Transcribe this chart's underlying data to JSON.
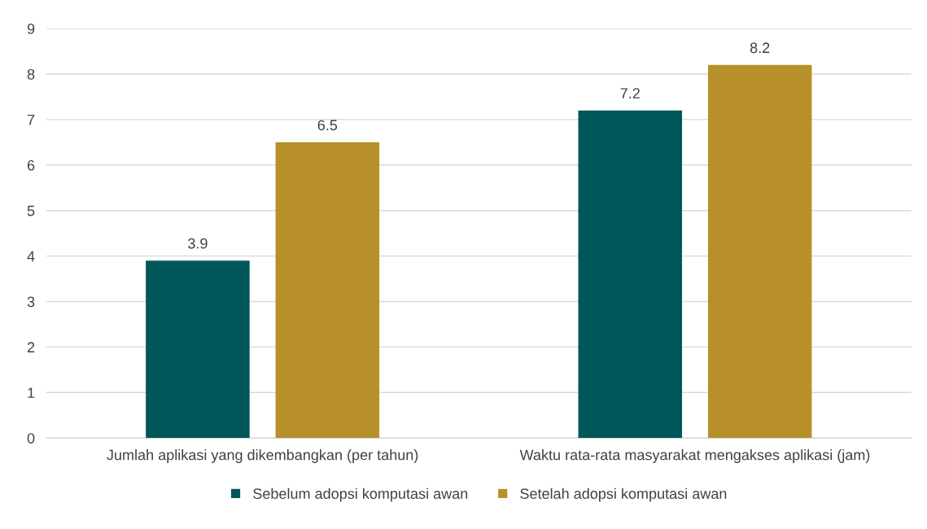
{
  "chart_data": {
    "type": "bar",
    "categories": [
      "Jumlah aplikasi yang dikembangkan (per tahun)",
      "Waktu rata-rata masyarakat mengakses aplikasi (jam)"
    ],
    "series": [
      {
        "name": "Sebelum adopsi komputasi awan",
        "color": "#00575a",
        "values": [
          3.9,
          7.2
        ]
      },
      {
        "name": "Setelah adopsi komputasi awan",
        "color": "#b8902b",
        "values": [
          6.5,
          8.2
        ]
      }
    ],
    "ylim": [
      0,
      9
    ],
    "yticks": [
      0,
      1,
      2,
      3,
      4,
      5,
      6,
      7,
      8,
      9
    ],
    "grid": "y",
    "legend": "bottom",
    "data_labels": true
  }
}
